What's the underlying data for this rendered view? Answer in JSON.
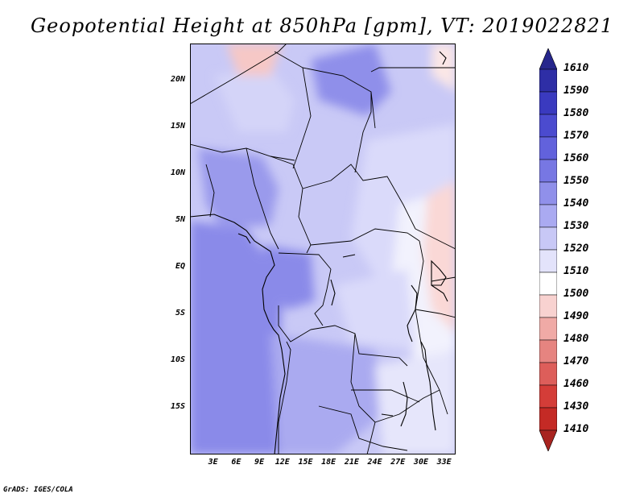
{
  "title": "Geopotential Height at 850hPa [gpm], VT: 2019022821",
  "credit": "GrADS: IGES/COLA",
  "map": {
    "lon_range": [
      0,
      34.5
    ],
    "lat_range": [
      -20,
      24
    ],
    "lat_labels": [
      "20N",
      "15N",
      "10N",
      "5N",
      "EQ",
      "5S",
      "10S",
      "15S"
    ],
    "lat_values": [
      20,
      15,
      10,
      5,
      0,
      -5,
      -10,
      -15
    ],
    "lon_labels": [
      "3E",
      "6E",
      "9E",
      "12E",
      "15E",
      "18E",
      "21E",
      "24E",
      "27E",
      "30E",
      "33E"
    ],
    "lon_values": [
      3,
      6,
      9,
      12,
      15,
      18,
      21,
      24,
      27,
      30,
      33
    ]
  },
  "colorbar": {
    "levels": [
      "1610",
      "1590",
      "1580",
      "1570",
      "1560",
      "1550",
      "1540",
      "1530",
      "1520",
      "1510",
      "1500",
      "1490",
      "1480",
      "1470",
      "1460",
      "1430",
      "1410"
    ],
    "colors": [
      "#26268c",
      "#2e2ea6",
      "#3a3abf",
      "#4b4bcf",
      "#6262dc",
      "#7777e3",
      "#9090ea",
      "#aaaaf1",
      "#c8c8f6",
      "#e3e3fb",
      "#ffffff",
      "#f8d2d0",
      "#f0aaa6",
      "#e68480",
      "#dd5e5a",
      "#d43d38",
      "#c42a25",
      "#a82420"
    ]
  }
}
